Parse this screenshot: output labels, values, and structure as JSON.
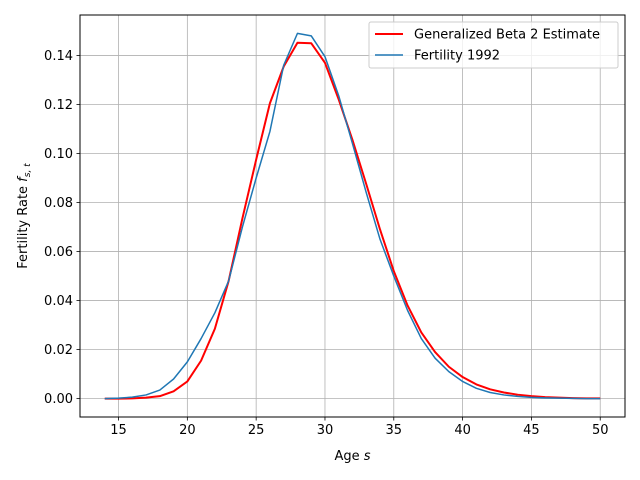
{
  "chart_data": {
    "type": "line",
    "xlabel": "Age s",
    "ylabel": "Fertility Rate f_{s,t}",
    "xlim": [
      12.2,
      51.8
    ],
    "ylim": [
      -0.0075,
      0.1565
    ],
    "grid": true,
    "legend_position": "top-right",
    "x_ticks": [
      15,
      20,
      25,
      30,
      35,
      40,
      45,
      50
    ],
    "y_ticks": [
      0.0,
      0.02,
      0.04,
      0.06,
      0.08,
      0.1,
      0.12,
      0.14
    ],
    "y_tick_labels": [
      "0.00",
      "0.02",
      "0.04",
      "0.06",
      "0.08",
      "0.10",
      "0.12",
      "0.14"
    ],
    "x": [
      14,
      15,
      16,
      17,
      18,
      19,
      20,
      21,
      22,
      23,
      24,
      25,
      26,
      27,
      28,
      29,
      30,
      31,
      32,
      33,
      34,
      35,
      36,
      37,
      38,
      39,
      40,
      41,
      42,
      43,
      44,
      45,
      46,
      47,
      48,
      49,
      50
    ],
    "series": [
      {
        "name": "Generalized Beta 2 Estimate",
        "color": "#ff0000",
        "values": [
          0.0,
          0.0,
          0.0001,
          0.0004,
          0.001,
          0.003,
          0.007,
          0.0155,
          0.0285,
          0.048,
          0.0735,
          0.0975,
          0.1205,
          0.1355,
          0.1452,
          0.145,
          0.137,
          0.122,
          0.1055,
          0.0875,
          0.069,
          0.052,
          0.038,
          0.027,
          0.019,
          0.013,
          0.0088,
          0.0058,
          0.0038,
          0.0025,
          0.0016,
          0.001,
          0.0006,
          0.0004,
          0.0002,
          0.0001,
          0.0001
        ]
      },
      {
        "name": "Fertility 1992",
        "color": "#1f77b4",
        "values": [
          0.0,
          0.0002,
          0.0006,
          0.0015,
          0.0035,
          0.008,
          0.015,
          0.0245,
          0.035,
          0.048,
          0.07,
          0.09,
          0.109,
          0.136,
          0.149,
          0.148,
          0.1395,
          0.1235,
          0.104,
          0.084,
          0.065,
          0.05,
          0.036,
          0.0245,
          0.0165,
          0.011,
          0.007,
          0.0042,
          0.0025,
          0.0015,
          0.0009,
          0.0005,
          0.0003,
          0.0002,
          0.0001,
          0.0,
          0.0
        ]
      }
    ]
  }
}
